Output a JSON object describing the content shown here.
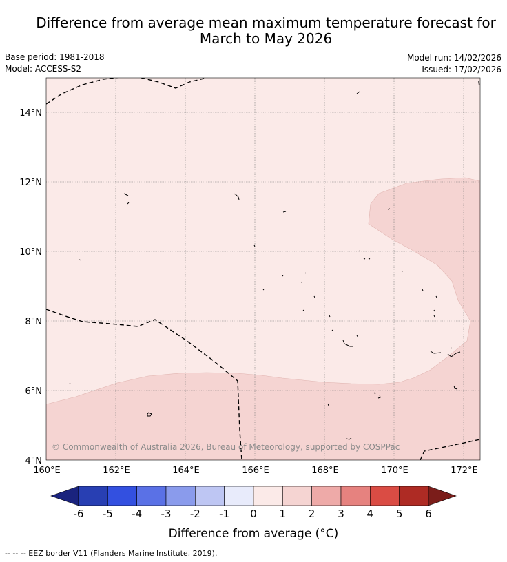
{
  "title_line1": "Difference from average mean maximum temperature forecast for",
  "title_line2": "March to May 2026",
  "base_period": "Base period: 1981-2018",
  "model": "Model: ACCESS-S2",
  "model_run": "Model run: 14/02/2026",
  "issued": "Issued: 17/02/2026",
  "map": {
    "lon_ticks": [
      "160°E",
      "162°E",
      "164°E",
      "166°E",
      "168°E",
      "170°E",
      "172°E"
    ],
    "lat_ticks": [
      "14°N",
      "12°N",
      "10°N",
      "8°N",
      "6°N",
      "4°N"
    ],
    "copyright": "© Commonwealth of Australia 2026, Bureau of Meteorology, supported by COSPPac"
  },
  "colorbar": {
    "title": "Difference from average (°C)",
    "ticks": [
      "-6",
      "-5",
      "-4",
      "-3",
      "-2",
      "-1",
      "0",
      "1",
      "2",
      "3",
      "4",
      "5",
      "6"
    ],
    "colors": {
      "under": "#1a237e",
      "bins": [
        "#283fb3",
        "#3350e0",
        "#5a71e6",
        "#8a9bec",
        "#bec6f3",
        "#e8ebfb",
        "#fbeae8",
        "#f5d4d2",
        "#eeaaa8",
        "#e6827f",
        "#da4c44",
        "#ae2b24"
      ],
      "over": "#7b1d1a"
    }
  },
  "footer": "-- -- -- EEZ border V11 (Flanders Marine Institute, 2019)."
}
